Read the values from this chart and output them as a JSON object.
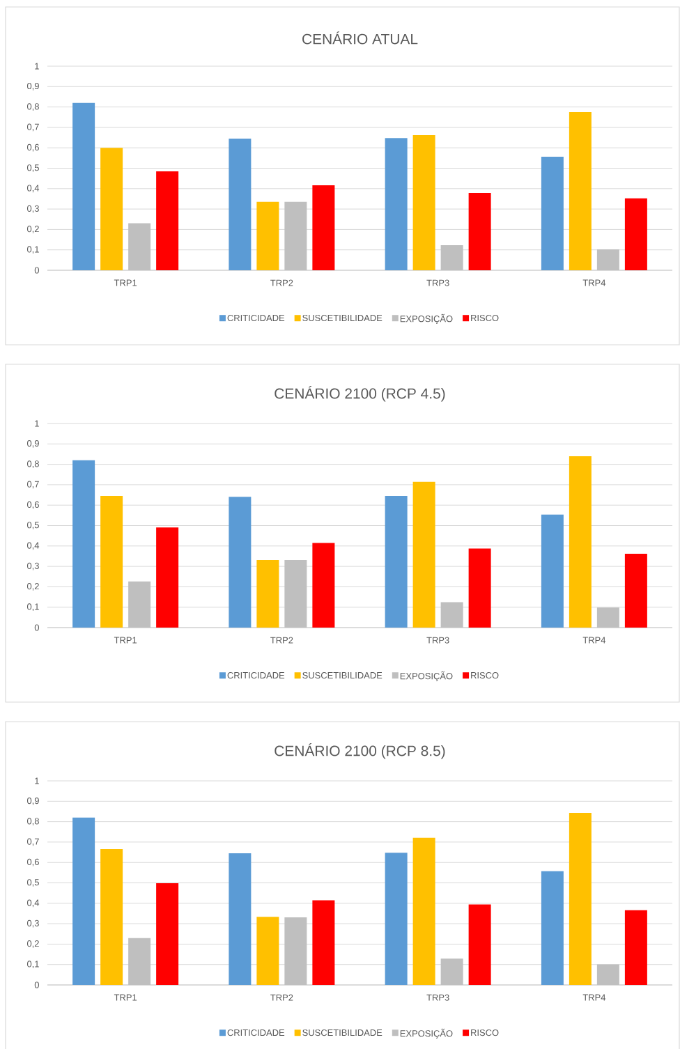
{
  "chart_data": [
    {
      "type": "bar",
      "title": "CENÁRIO ATUAL",
      "categories": [
        "TRP1",
        "TRP2",
        "TRP3",
        "TRP4"
      ],
      "series": [
        {
          "name": "CRITICIDADE",
          "color": "#5b9bd5",
          "values": [
            0.82,
            0.645,
            0.648,
            0.556
          ]
        },
        {
          "name": "SUSCETIBILIDADE",
          "color": "#ffc000",
          "values": [
            0.6,
            0.335,
            0.662,
            0.775
          ]
        },
        {
          "name": "EXPOSIÇÃO",
          "color": "#bfbfbf",
          "values": [
            0.23,
            0.335,
            0.123,
            0.102
          ]
        },
        {
          "name": "RISCO",
          "color": "#ff0000",
          "values": [
            0.485,
            0.416,
            0.379,
            0.352
          ]
        }
      ],
      "ylim": [
        0,
        1
      ],
      "yticks": [
        0,
        {
          "value": 0.1,
          "label": "0,1"
        },
        {
          "value": 0.2,
          "label": "0,2"
        },
        {
          "value": 0.3,
          "label": "0,3"
        },
        {
          "value": 0.4,
          "label": "0,4"
        },
        {
          "value": 0.5,
          "label": "0,5"
        },
        {
          "value": 0.6,
          "label": "0,6"
        },
        {
          "value": 0.7,
          "label": "0,7"
        },
        {
          "value": 0.8,
          "label": "0,8"
        },
        {
          "value": 0.9,
          "label": "0,9"
        },
        1
      ],
      "grid": "y",
      "legend": "bottom"
    },
    {
      "type": "bar",
      "title": "CENÁRIO 2100 (RCP 4.5)",
      "categories": [
        "TRP1",
        "TRP2",
        "TRP3",
        "TRP4"
      ],
      "series": [
        {
          "name": "CRITICIDADE",
          "color": "#5b9bd5",
          "values": [
            0.82,
            0.641,
            0.645,
            0.554
          ]
        },
        {
          "name": "SUSCETIBILIDADE",
          "color": "#ffc000",
          "values": [
            0.645,
            0.331,
            0.714,
            0.84
          ]
        },
        {
          "name": "EXPOSIÇÃO",
          "color": "#bfbfbf",
          "values": [
            0.226,
            0.331,
            0.125,
            0.098
          ]
        },
        {
          "name": "RISCO",
          "color": "#ff0000",
          "values": [
            0.491,
            0.415,
            0.387,
            0.362
          ]
        }
      ],
      "ylim": [
        0,
        1
      ],
      "yticks": [
        0,
        {
          "value": 0.1,
          "label": "0,1"
        },
        {
          "value": 0.2,
          "label": "0,2"
        },
        {
          "value": 0.3,
          "label": "0,3"
        },
        {
          "value": 0.4,
          "label": "0,4"
        },
        {
          "value": 0.5,
          "label": "0,5"
        },
        {
          "value": 0.6,
          "label": "0,6"
        },
        {
          "value": 0.7,
          "label": "0,7"
        },
        {
          "value": 0.8,
          "label": "0,8"
        },
        {
          "value": 0.9,
          "label": "0,9"
        },
        1
      ],
      "grid": "y",
      "legend": "bottom"
    },
    {
      "type": "bar",
      "title": "CENÁRIO 2100 (RCP 8.5)",
      "categories": [
        "TRP1",
        "TRP2",
        "TRP3",
        "TRP4"
      ],
      "series": [
        {
          "name": "CRITICIDADE",
          "color": "#5b9bd5",
          "values": [
            0.82,
            0.645,
            0.648,
            0.557
          ]
        },
        {
          "name": "SUSCETIBILIDADE",
          "color": "#ffc000",
          "values": [
            0.666,
            0.334,
            0.721,
            0.843
          ]
        },
        {
          "name": "EXPOSIÇÃO",
          "color": "#bfbfbf",
          "values": [
            0.23,
            0.331,
            0.129,
            0.101
          ]
        },
        {
          "name": "RISCO",
          "color": "#ff0000",
          "values": [
            0.498,
            0.415,
            0.394,
            0.366
          ]
        }
      ],
      "ylim": [
        0,
        1
      ],
      "yticks": [
        0,
        {
          "value": 0.1,
          "label": "0,1"
        },
        {
          "value": 0.2,
          "label": "0,2"
        },
        {
          "value": 0.3,
          "label": "0,3"
        },
        {
          "value": 0.4,
          "label": "0,4"
        },
        {
          "value": 0.5,
          "label": "0,5"
        },
        {
          "value": 0.6,
          "label": "0,6"
        },
        {
          "value": 0.7,
          "label": "0,7"
        },
        {
          "value": 0.8,
          "label": "0,8"
        },
        {
          "value": 0.9,
          "label": "0,9"
        },
        1
      ],
      "grid": "y",
      "legend": "bottom"
    }
  ]
}
